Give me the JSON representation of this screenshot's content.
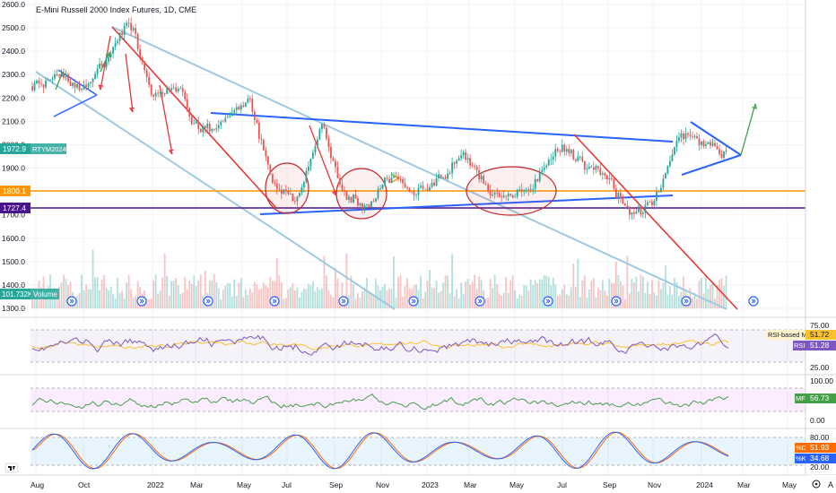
{
  "header": {
    "title": "E-Mini Russell 2000 Index Futures, 1D, CME"
  },
  "colors": {
    "up": "#26a69a",
    "down": "#ef5350",
    "trend_blue": "#2962ff",
    "trend_red": "#e53935",
    "channel": "#9ecae1",
    "orange": "#ff9800",
    "purple": "#4a148c",
    "rsi": "#7e57c2",
    "rsi_ma": "#fbc02d",
    "mf": "#43a047",
    "stoch_k": "#2962ff",
    "stoch_d": "#ff6d00"
  },
  "price_axis": {
    "labels": [
      "2600.0",
      "2500.0",
      "2400.0",
      "2300.0",
      "2200.0",
      "2100.0",
      "2000.0",
      "1900.0",
      "1800.0",
      "1700.0",
      "1600.0",
      "1500.0",
      "1400.0",
      "1300.0"
    ]
  },
  "price_tags": {
    "current": "1972.9",
    "symbol": "RTYM2024",
    "orange_level": "1800.1",
    "purple_level": "1727.4"
  },
  "volume": {
    "value": "101.732K",
    "label": "Volume"
  },
  "rsi_pane": {
    "levels": [
      "75.00",
      "25.00"
    ],
    "ma_label": "RSI-based MA",
    "ma_value": "51.72",
    "rsi_label": "RSI",
    "rsi_value": "51.28"
  },
  "mf_pane": {
    "levels": [
      "100.00",
      "0.00"
    ],
    "label": "MF",
    "value": "56.73"
  },
  "stoch_pane": {
    "levels": [
      "80.00",
      "20.00"
    ],
    "d_label": "%D",
    "d_value": "51.93",
    "k_label": "%K",
    "k_value": "34.68"
  },
  "time_axis": {
    "labels": [
      "Aug",
      "Oct",
      "2022",
      "Mar",
      "May",
      "Jul",
      "Sep",
      "Nov",
      "2023",
      "Mar",
      "May",
      "Jul",
      "Sep",
      "Nov",
      "2024",
      "Mar",
      "May"
    ]
  },
  "corner": {
    "auto_label": "A"
  },
  "chart_data": {
    "type": "candlestick",
    "title": "E-Mini Russell 2000 Index Futures, 1D, CME",
    "ylim": [
      1300,
      2600
    ],
    "x_ticks": [
      "Aug",
      "Oct",
      "2022",
      "Mar",
      "May",
      "Jul",
      "Sep",
      "Nov",
      "2023",
      "Mar",
      "May",
      "Jul",
      "Sep",
      "Nov",
      "2024",
      "Mar",
      "May"
    ],
    "price_path": [
      [
        "Aug",
        2250
      ],
      [
        "Aug",
        2300
      ],
      [
        "Sep",
        2240
      ],
      [
        "Oct",
        2350
      ],
      [
        "Nov",
        2540
      ],
      [
        "Dec",
        2200
      ],
      [
        "2022",
        2250
      ],
      [
        "Feb",
        2050
      ],
      [
        "Mar",
        2100
      ],
      [
        "Apr",
        2200
      ],
      [
        "May",
        1820
      ],
      [
        "Jun",
        1760
      ],
      [
        "Aug",
        2100
      ],
      [
        "Sep",
        1780
      ],
      [
        "Oct",
        1740
      ],
      [
        "Nov",
        1880
      ],
      [
        "Dec",
        1800
      ],
      [
        "2023",
        1860
      ],
      [
        "Feb",
        1960
      ],
      [
        "Mar",
        1800
      ],
      [
        "May",
        1780
      ],
      [
        "Jun",
        1850
      ],
      [
        "Jul",
        2000
      ],
      [
        "Aug",
        1920
      ],
      [
        "Sep",
        1840
      ],
      [
        "Oct",
        1700
      ],
      [
        "Nov",
        1760
      ],
      [
        "Dec",
        2050
      ],
      [
        "2024",
        2000
      ],
      [
        "Feb",
        1973
      ]
    ],
    "horizontal_levels": [
      1800.1,
      1727.4
    ],
    "last_price": 1972.9,
    "volume_last": "101.732K",
    "indicators": {
      "rsi": {
        "last": 51.28,
        "ma_last": 51.72,
        "bands": [
          25,
          75
        ]
      },
      "mf": {
        "last": 56.73,
        "bands": [
          0,
          100
        ]
      },
      "stochastic": {
        "k_last": 34.68,
        "d_last": 51.93,
        "bands": [
          20,
          80
        ]
      }
    }
  }
}
